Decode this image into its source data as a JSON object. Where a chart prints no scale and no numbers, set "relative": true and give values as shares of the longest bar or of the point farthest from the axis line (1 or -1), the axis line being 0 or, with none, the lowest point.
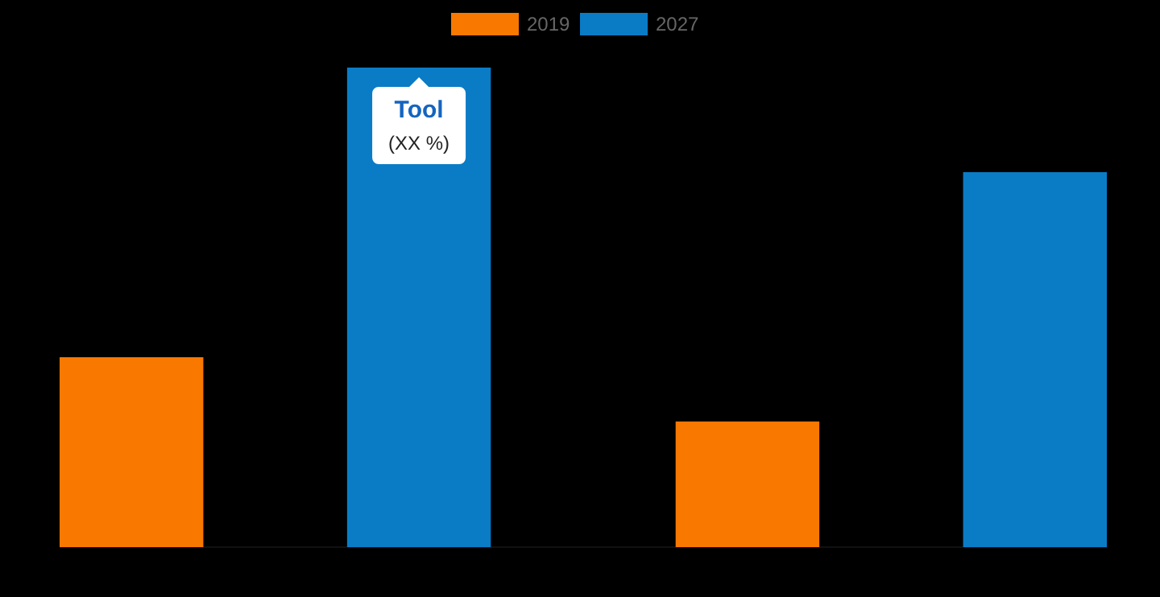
{
  "chart_data": {
    "type": "bar",
    "relative": true,
    "categories": [
      null,
      null
    ],
    "legend": "top",
    "series": [
      {
        "name": "2019",
        "color": "#f87800",
        "values": [
          0.396,
          0.262
        ]
      },
      {
        "name": "2027",
        "color": "#0a7cc6",
        "values": [
          1,
          0.782
        ]
      }
    ],
    "annotations": [
      "Tool",
      "(XX %)"
    ]
  }
}
